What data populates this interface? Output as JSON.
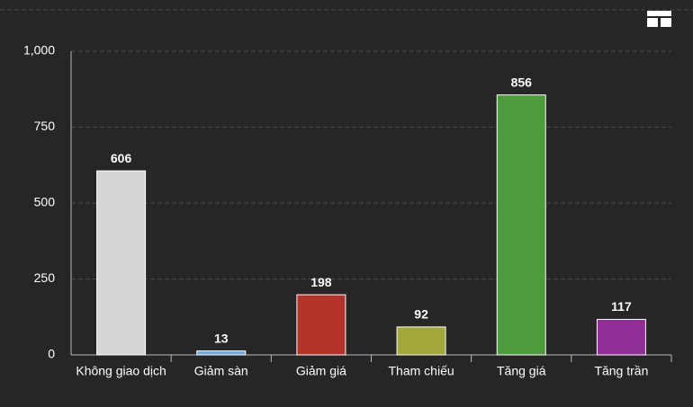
{
  "chart_data": {
    "type": "bar",
    "categories": [
      "Không giao dịch",
      "Giảm sàn",
      "Giảm giá",
      "Tham chiếu",
      "Tăng giá",
      "Tăng trần"
    ],
    "values": [
      606,
      13,
      198,
      92,
      856,
      117
    ],
    "colors": [
      "#d6d6d6",
      "#6fa8dc",
      "#b5322a",
      "#a3a83a",
      "#4e9a3f",
      "#8e2e96"
    ],
    "ylim": [
      0,
      1000
    ],
    "yticks": [
      0,
      250,
      500,
      750,
      {
        "value": 1000,
        "label": "1,000"
      }
    ],
    "grid": true
  }
}
